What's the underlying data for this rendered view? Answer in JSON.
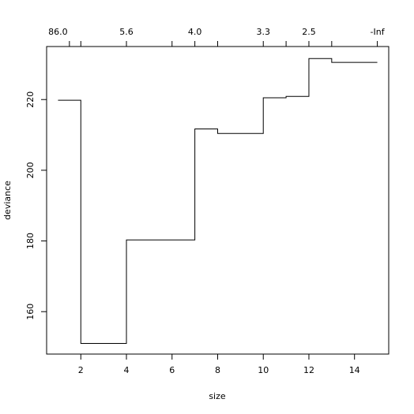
{
  "chart_data": {
    "type": "line",
    "style": "step",
    "xlabel": "size",
    "ylabel": "deviance",
    "xlim": [
      0.5,
      15.5
    ],
    "ylim": [
      148,
      235
    ],
    "x_ticks": [
      2,
      4,
      6,
      8,
      10,
      12,
      14
    ],
    "x_tick_labels": [
      "2",
      "4",
      "6",
      "8",
      "10",
      "12",
      "14"
    ],
    "y_ticks": [
      160,
      180,
      200,
      220
    ],
    "y_tick_labels": [
      "160",
      "180",
      "200",
      "220"
    ],
    "top_axis": {
      "tick_positions": [
        1.5,
        2,
        4,
        6,
        7,
        8,
        10,
        11,
        12,
        13,
        15
      ],
      "labels": [
        {
          "text": "86.0",
          "at": 1
        },
        {
          "text": "5.6",
          "at": 4
        },
        {
          "text": "4.0",
          "at": 7
        },
        {
          "text": "3.3",
          "at": 10
        },
        {
          "text": "2.5",
          "at": 12
        },
        {
          "text": "-Inf",
          "at": 15
        }
      ]
    },
    "points": [
      {
        "x": 1,
        "y": 219.8
      },
      {
        "x": 2,
        "y": 151.0
      },
      {
        "x": 4,
        "y": 180.3
      },
      {
        "x": 7,
        "y": 211.7
      },
      {
        "x": 8,
        "y": 210.4
      },
      {
        "x": 10,
        "y": 220.5
      },
      {
        "x": 11,
        "y": 220.9
      },
      {
        "x": 12,
        "y": 231.6
      },
      {
        "x": 13,
        "y": 230.5
      },
      {
        "x": 15,
        "y": 230.5
      }
    ],
    "grid": false,
    "legend": "none"
  }
}
